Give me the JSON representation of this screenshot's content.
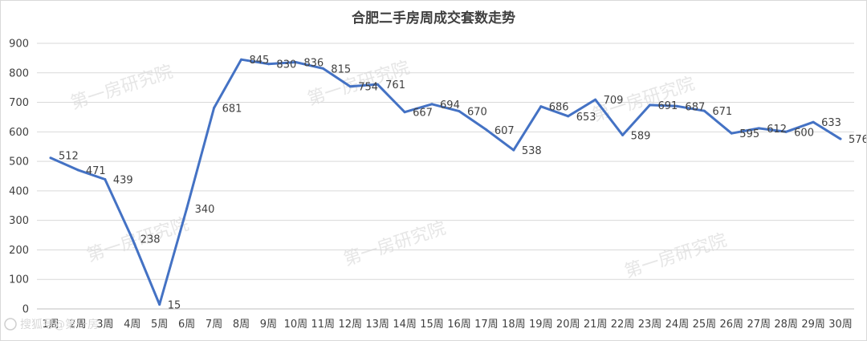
{
  "chart_data": {
    "type": "line",
    "title": "合肥二手房周成交套数走势",
    "xlabel": "",
    "ylabel": "",
    "ylim": [
      0,
      900
    ],
    "yticks": [
      0,
      100,
      200,
      300,
      400,
      500,
      600,
      700,
      800,
      900
    ],
    "grid": true,
    "legend": "none",
    "categories": [
      "1周",
      "2周",
      "3周",
      "4周",
      "5周",
      "6周",
      "7周",
      "8周",
      "9周",
      "10周",
      "11周",
      "12周",
      "13周",
      "14周",
      "15周",
      "16周",
      "17周",
      "18周",
      "19周",
      "20周",
      "21周",
      "22周",
      "23周",
      "24周",
      "25周",
      "26周",
      "27周",
      "28周",
      "29周",
      "30周"
    ],
    "series": [
      {
        "color": "#4472c4",
        "values": [
          512,
          471,
          439,
          238,
          15,
          340,
          681,
          845,
          830,
          836,
          815,
          754,
          761,
          667,
          694,
          670,
          607,
          538,
          686,
          653,
          709,
          589,
          691,
          687,
          671,
          595,
          612,
          600,
          633,
          576
        ]
      }
    ]
  },
  "watermark": {
    "text": "第一房研究院",
    "count": 6
  },
  "logo": {
    "text": "搜狐号@第一房"
  }
}
